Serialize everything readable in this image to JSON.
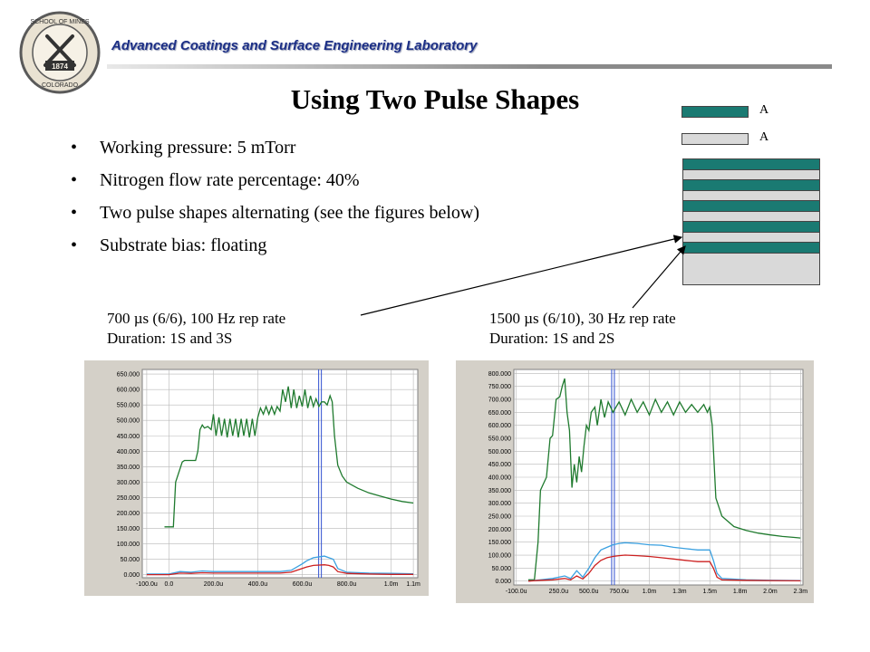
{
  "header": {
    "lab_name": "Advanced Coatings and Surface Engineering Laboratory",
    "logo": {
      "top_text": "SCHOOL OF MINES",
      "year": "1874",
      "bottom_text": "COLORADO",
      "icon": "crossed-hammer-pick-icon"
    }
  },
  "slide_title": "Using Two Pulse Shapes",
  "bullets": [
    "Working pressure: 5 mTorr",
    "Nitrogen flow rate percentage: 40%",
    "Two pulse shapes alternating (see the figures below)",
    "Substrate bias: floating"
  ],
  "layer_stack": {
    "label_a": "A",
    "label_b": "A",
    "color_a": "#1a7a72",
    "color_b": "#d9d9d9"
  },
  "captions": {
    "left_line1": "700 µs (6/6), 100 Hz rep rate",
    "left_line2": "Duration: 1S and 3S",
    "right_line1": "1500 µs (6/10), 30 Hz rep rate",
    "right_line2": "Duration: 1S and 2S"
  },
  "chart_data": [
    {
      "type": "line",
      "x_ticks": [
        "-100.0u",
        "0.0",
        "200.0u",
        "400.0u",
        "600.0u",
        "800.0u",
        "1.0m",
        "1.1m"
      ],
      "x_tick_values": [
        -100,
        0,
        200,
        400,
        600,
        800,
        1000,
        1100
      ],
      "y_ticks": [
        "650.000",
        "600.000",
        "550.000",
        "500.000",
        "450.000",
        "400.000",
        "350.000",
        "300.000",
        "250.000",
        "200.000",
        "150.000",
        "100.000",
        "50.000",
        "0.000"
      ],
      "xlim": [
        -120,
        1120
      ],
      "ylim": [
        -10,
        665
      ],
      "cursor_x": 680,
      "series": [
        {
          "color": "#1f7a2e",
          "x": [
            -20,
            20,
            30,
            60,
            70,
            120,
            130,
            140,
            150,
            160,
            175,
            190,
            200,
            212,
            225,
            237,
            250,
            262,
            275,
            287,
            300,
            312,
            325,
            337,
            350,
            362,
            375,
            387,
            400,
            412,
            425,
            437,
            450,
            462,
            475,
            487,
            500,
            512,
            525,
            537,
            550,
            562,
            575,
            587,
            600,
            612,
            625,
            637,
            650,
            662,
            675,
            687,
            700,
            712,
            725,
            735,
            745,
            760,
            780,
            800,
            850,
            900,
            950,
            1000,
            1050,
            1100
          ],
          "y": [
            155,
            155,
            300,
            365,
            370,
            370,
            400,
            470,
            485,
            475,
            480,
            470,
            520,
            450,
            510,
            450,
            505,
            445,
            505,
            450,
            505,
            445,
            505,
            450,
            505,
            445,
            505,
            450,
            510,
            540,
            520,
            545,
            520,
            545,
            520,
            545,
            530,
            600,
            560,
            610,
            540,
            600,
            540,
            580,
            545,
            600,
            540,
            580,
            545,
            570,
            545,
            560,
            560,
            550,
            580,
            560,
            450,
            355,
            320,
            300,
            280,
            265,
            255,
            245,
            237,
            232
          ]
        },
        {
          "color": "#3aa0e0",
          "x": [
            -100,
            0,
            50,
            100,
            150,
            200,
            300,
            400,
            500,
            550,
            600,
            620,
            650,
            700,
            720,
            740,
            760,
            800,
            900,
            1000,
            1100
          ],
          "y": [
            2,
            2,
            10,
            8,
            12,
            10,
            10,
            10,
            10,
            14,
            35,
            45,
            55,
            60,
            55,
            50,
            20,
            8,
            5,
            4,
            3
          ]
        },
        {
          "color": "#cc2020",
          "x": [
            -100,
            0,
            50,
            100,
            150,
            200,
            300,
            400,
            500,
            550,
            600,
            620,
            650,
            700,
            720,
            740,
            760,
            800,
            900,
            1000,
            1100
          ],
          "y": [
            0,
            0,
            5,
            4,
            6,
            5,
            5,
            5,
            5,
            8,
            20,
            25,
            30,
            32,
            30,
            25,
            10,
            4,
            2,
            1,
            1
          ]
        }
      ]
    },
    {
      "type": "line",
      "x_ticks": [
        "-100.0u",
        "250.0u",
        "500.0u",
        "750.0u",
        "1.0m",
        "1.3m",
        "1.5m",
        "1.8m",
        "2.0m",
        "2.3m"
      ],
      "x_tick_values": [
        -100,
        250,
        500,
        750,
        1000,
        1250,
        1500,
        1750,
        2000,
        2250
      ],
      "y_ticks": [
        "800.000",
        "750.000",
        "700.000",
        "650.000",
        "600.000",
        "550.000",
        "500.000",
        "450.000",
        "400.000",
        "350.000",
        "300.000",
        "250.000",
        "200.000",
        "150.000",
        "100.000",
        "50.000",
        "0.000"
      ],
      "xlim": [
        -120,
        2270
      ],
      "ylim": [
        -15,
        815
      ],
      "cursor_x": 700,
      "series": [
        {
          "color": "#1f7a2e",
          "x": [
            0,
            50,
            80,
            100,
            120,
            150,
            180,
            200,
            230,
            260,
            280,
            300,
            320,
            340,
            360,
            380,
            400,
            420,
            440,
            460,
            480,
            500,
            520,
            550,
            570,
            600,
            630,
            660,
            700,
            750,
            800,
            850,
            900,
            950,
            1000,
            1050,
            1100,
            1150,
            1200,
            1250,
            1300,
            1350,
            1400,
            1450,
            1480,
            1500,
            1520,
            1550,
            1600,
            1700,
            1800,
            1900,
            2000,
            2100,
            2200,
            2250
          ],
          "y": [
            5,
            5,
            150,
            350,
            370,
            400,
            550,
            560,
            700,
            710,
            750,
            780,
            650,
            580,
            360,
            450,
            380,
            480,
            420,
            520,
            600,
            580,
            650,
            670,
            600,
            700,
            630,
            690,
            650,
            690,
            640,
            700,
            650,
            690,
            640,
            700,
            650,
            690,
            640,
            690,
            650,
            680,
            650,
            680,
            650,
            670,
            600,
            320,
            250,
            210,
            195,
            185,
            178,
            172,
            168,
            166
          ]
        },
        {
          "color": "#3aa0e0",
          "x": [
            0,
            100,
            200,
            300,
            350,
            400,
            450,
            500,
            550,
            600,
            650,
            700,
            750,
            800,
            900,
            1000,
            1100,
            1200,
            1300,
            1400,
            1500,
            1530,
            1560,
            1600,
            1800,
            2000,
            2250
          ],
          "y": [
            0,
            5,
            10,
            20,
            10,
            40,
            15,
            50,
            90,
            120,
            130,
            140,
            145,
            148,
            145,
            140,
            138,
            130,
            125,
            120,
            120,
            80,
            30,
            10,
            5,
            3,
            2
          ]
        },
        {
          "color": "#cc2020",
          "x": [
            0,
            100,
            200,
            300,
            350,
            400,
            450,
            500,
            550,
            600,
            650,
            700,
            750,
            800,
            900,
            1000,
            1100,
            1200,
            1300,
            1400,
            1500,
            1530,
            1560,
            1600,
            1800,
            2000,
            2250
          ],
          "y": [
            0,
            3,
            5,
            10,
            5,
            20,
            8,
            30,
            60,
            80,
            90,
            95,
            98,
            100,
            98,
            95,
            90,
            85,
            80,
            75,
            75,
            50,
            15,
            5,
            3,
            2,
            1
          ]
        }
      ]
    }
  ]
}
